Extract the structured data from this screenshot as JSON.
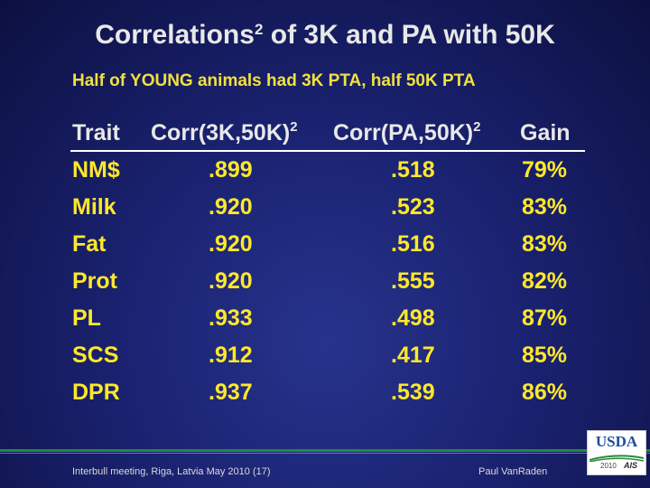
{
  "title": {
    "main": "Correlations",
    "sup": "2",
    "rest": " of 3K and PA with 50K"
  },
  "subtitle": "Half of  YOUNG animals had 3K PTA, half 50K PTA",
  "table": {
    "headers": {
      "trait": "Trait",
      "corr1": "Corr(3K,50K)",
      "corr1_sup": "2",
      "corr2": "Corr(PA,50K)",
      "corr2_sup": "2",
      "gain": "Gain"
    },
    "rows": [
      {
        "trait": "NM$",
        "corr1": ".899",
        "corr2": ".518",
        "gain": "79%"
      },
      {
        "trait": "Milk",
        "corr1": ".920",
        "corr2": ".523",
        "gain": "83%"
      },
      {
        "trait": "Fat",
        "corr1": ".920",
        "corr2": ".516",
        "gain": "83%"
      },
      {
        "trait": "Prot",
        "corr1": ".920",
        "corr2": ".555",
        "gain": "82%"
      },
      {
        "trait": "PL",
        "corr1": ".933",
        "corr2": ".498",
        "gain": "87%"
      },
      {
        "trait": "SCS",
        "corr1": ".912",
        "corr2": ".417",
        "gain": "85%"
      },
      {
        "trait": "DPR",
        "corr1": ".937",
        "corr2": ".539",
        "gain": "86%"
      }
    ]
  },
  "footer": {
    "left": "Interbull meeting, Riga, Latvia   May 2010 (17)",
    "right": "Paul VanRaden"
  },
  "logo": {
    "name": "USDA",
    "year": "2010",
    "mark": "AIS"
  },
  "colors": {
    "text_primary": "#e8e8e8",
    "highlight": "#ffe82a",
    "accent_green": "#1f8a3c",
    "background": "#1a2270"
  }
}
